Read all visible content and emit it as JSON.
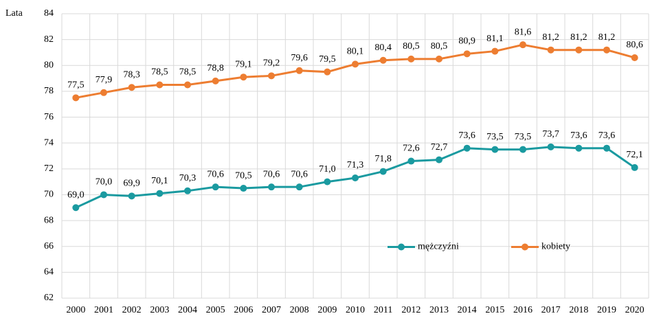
{
  "chart_data": {
    "type": "line",
    "y_axis_label": "Lata",
    "categories": [
      "2000",
      "2001",
      "2002",
      "2003",
      "2004",
      "2005",
      "2006",
      "2007",
      "2008",
      "2009",
      "2010",
      "2011",
      "2012",
      "2013",
      "2014",
      "2015",
      "2016",
      "2017",
      "2018",
      "2019",
      "2020"
    ],
    "series": [
      {
        "name": "mężczyźni",
        "color": "#1a9aa0",
        "values": [
          69.0,
          70.0,
          69.9,
          70.1,
          70.3,
          70.6,
          70.5,
          70.6,
          70.6,
          71.0,
          71.3,
          71.8,
          72.6,
          72.7,
          73.6,
          73.5,
          73.5,
          73.7,
          73.6,
          73.6,
          72.1
        ],
        "value_labels": [
          "69,0",
          "70,0",
          "69,9",
          "70,1",
          "70,3",
          "70,6",
          "70,5",
          "70,6",
          "70,6",
          "71,0",
          "71,3",
          "71,8",
          "72,6",
          "72,7",
          "73,6",
          "73,5",
          "73,5",
          "73,7",
          "73,6",
          "73,6",
          "72,1"
        ]
      },
      {
        "name": "kobiety",
        "color": "#ed7d31",
        "values": [
          77.5,
          77.9,
          78.3,
          78.5,
          78.5,
          78.8,
          79.1,
          79.2,
          79.6,
          79.5,
          80.1,
          80.4,
          80.5,
          80.5,
          80.9,
          81.1,
          81.6,
          81.2,
          81.2,
          81.2,
          80.6
        ],
        "value_labels": [
          "77,5",
          "77,9",
          "78,3",
          "78,5",
          "78,5",
          "78,8",
          "79,1",
          "79,2",
          "79,6",
          "79,5",
          "80,1",
          "80,4",
          "80,5",
          "80,5",
          "80,9",
          "81,1",
          "81,6",
          "81,2",
          "81,2",
          "81,2",
          "80,6"
        ]
      }
    ],
    "ylim": [
      62,
      84
    ],
    "yticks": [
      62,
      64,
      66,
      68,
      70,
      72,
      74,
      76,
      78,
      80,
      82,
      84
    ],
    "grid": true,
    "legend_position": "lower right"
  }
}
